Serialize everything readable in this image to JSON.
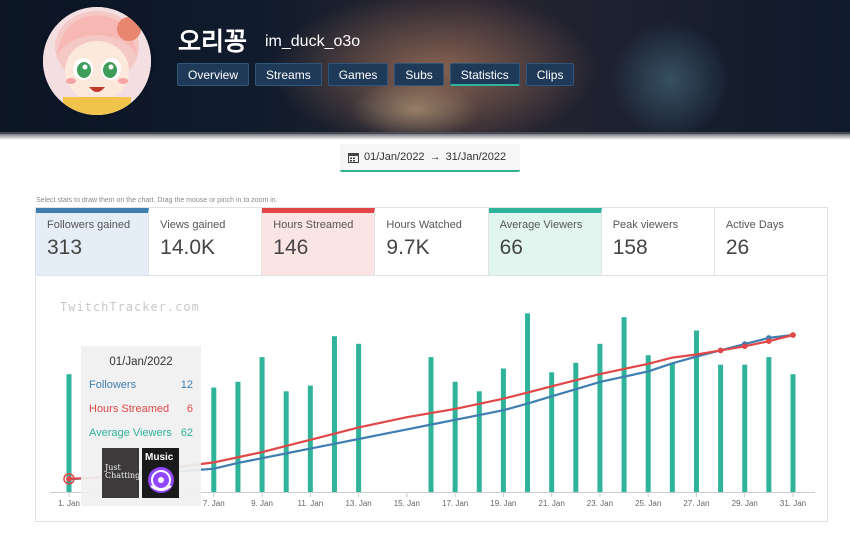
{
  "channel": {
    "name": "오리꽁",
    "handle": "im_duck_o3o"
  },
  "tabs": [
    {
      "label": "Overview"
    },
    {
      "label": "Streams"
    },
    {
      "label": "Games"
    },
    {
      "label": "Subs"
    },
    {
      "label": "Statistics",
      "active": true
    },
    {
      "label": "Clips"
    }
  ],
  "date_range": {
    "start": "01/Jan/2022",
    "end": "31/Jan/2022"
  },
  "hint": "Select stats to draw them on the chart. Drag the mouse or pinch in to zoom in.",
  "stats": [
    {
      "label": "Followers gained",
      "value": "313",
      "selected_color": "#3f7eb0"
    },
    {
      "label": "Views gained",
      "value": "14.0K"
    },
    {
      "label": "Hours Streamed",
      "value": "146",
      "selected_color": "#e14748"
    },
    {
      "label": "Hours Watched",
      "value": "9.7K"
    },
    {
      "label": "Average Viewers",
      "value": "66",
      "selected_color": "#2fb39a"
    },
    {
      "label": "Peak viewers",
      "value": "158"
    },
    {
      "label": "Active Days",
      "value": "26"
    }
  ],
  "watermark": "TwitchTracker.com",
  "tooltip": {
    "date": "01/Jan/2022",
    "rows": [
      {
        "label": "Followers",
        "value": "12"
      },
      {
        "label": "Hours Streamed",
        "value": "6"
      },
      {
        "label": "Average Viewers",
        "value": "62"
      }
    ],
    "category_labels": [
      "Just Chatting",
      "Music"
    ]
  },
  "colors": {
    "followers": "#3f7eb0",
    "hours": "#e14748",
    "viewers": "#2fb39a"
  },
  "chart_data": {
    "type": "bar",
    "x": [
      "1. Jan",
      "2. Jan",
      "3. Jan",
      "4. Jan",
      "5. Jan",
      "6. Jan",
      "7. Jan",
      "8. Jan",
      "9. Jan",
      "10. Jan",
      "11. Jan",
      "12. Jan",
      "13. Jan",
      "14. Jan",
      "15. Jan",
      "16. Jan",
      "17. Jan",
      "18. Jan",
      "19. Jan",
      "20. Jan",
      "21. Jan",
      "22. Jan",
      "23. Jan",
      "24. Jan",
      "25. Jan",
      "26. Jan",
      "27. Jan",
      "28. Jan",
      "29. Jan",
      "30. Jan",
      "31. Jan"
    ],
    "tick_labels": [
      "1. Jan",
      "7. Jan",
      "9. Jan",
      "11. Jan",
      "13. Jan",
      "15. Jan",
      "17. Jan",
      "19. Jan",
      "21. Jan",
      "23. Jan",
      "25. Jan",
      "27. Jan",
      "29. Jan",
      "31. Jan"
    ],
    "series": [
      {
        "name": "Average Viewers",
        "kind": "bar",
        "values": [
          62,
          null,
          null,
          null,
          null,
          null,
          55,
          58,
          71,
          53,
          56,
          82,
          78,
          null,
          null,
          71,
          58,
          53,
          65,
          94,
          63,
          68,
          78,
          92,
          72,
          68,
          85,
          67,
          67,
          71,
          62
        ]
      },
      {
        "name": "Followers",
        "kind": "line",
        "values": [
          12,
          15,
          19,
          22,
          26,
          30,
          34,
          46,
          56,
          66,
          76,
          86,
          96,
          106,
          116,
          126,
          136,
          146,
          156,
          170,
          185,
          200,
          215,
          226,
          237,
          254,
          268,
          281,
          294,
          307,
          313
        ]
      },
      {
        "name": "Hours Streamed",
        "kind": "line",
        "values": [
          6,
          7,
          10,
          13,
          16,
          19,
          22,
          27,
          32,
          38,
          44,
          50,
          56,
          61,
          66,
          70,
          74,
          79,
          84,
          90,
          96,
          102,
          108,
          113,
          118,
          124,
          127,
          131,
          135,
          140,
          146
        ]
      }
    ]
  }
}
